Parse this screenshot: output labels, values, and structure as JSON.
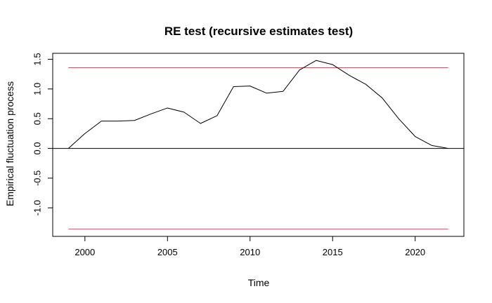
{
  "chart_data": {
    "type": "line",
    "title": "RE test (recursive estimates test)",
    "xlabel": "Time",
    "ylabel": "Empirical fluctuation process",
    "xlim": [
      1998.05,
      2022.95
    ],
    "ylim": [
      -1.48,
      1.6
    ],
    "x_ticks": [
      2000,
      2005,
      2010,
      2015,
      2020
    ],
    "x_tick_labels": [
      "2000",
      "2005",
      "2010",
      "2015",
      "2020"
    ],
    "y_ticks": [
      -1.0,
      -0.5,
      0.0,
      0.5,
      1.0,
      1.5
    ],
    "y_tick_labels": [
      "-1.0",
      "-0.5",
      "0.0",
      "0.5",
      "1.0",
      "1.5"
    ],
    "grid": false,
    "legend": "none",
    "series": [
      {
        "x": [
          1999,
          2000,
          2001,
          2002,
          2003,
          2004,
          2005,
          2006,
          2007,
          2008,
          2009,
          2010,
          2011,
          2012,
          2013,
          2014,
          2015,
          2016,
          2017,
          2018,
          2019,
          2020,
          2021,
          2022
        ],
        "y": [
          0.0,
          0.25,
          0.46,
          0.46,
          0.47,
          0.58,
          0.68,
          0.61,
          0.42,
          0.55,
          1.04,
          1.05,
          0.93,
          0.96,
          1.32,
          1.48,
          1.41,
          1.23,
          1.08,
          0.85,
          0.5,
          0.2,
          0.05,
          0.0
        ],
        "color": "#000000"
      }
    ],
    "boundaries": [
      {
        "y": 1.358,
        "x_from": 1999,
        "x_to": 2022,
        "color": "#cc5566"
      },
      {
        "y": -1.358,
        "x_from": 1999,
        "x_to": 2022,
        "color": "#cc5566"
      }
    ],
    "reference_line": {
      "y": 0.0,
      "color": "#000000"
    }
  }
}
